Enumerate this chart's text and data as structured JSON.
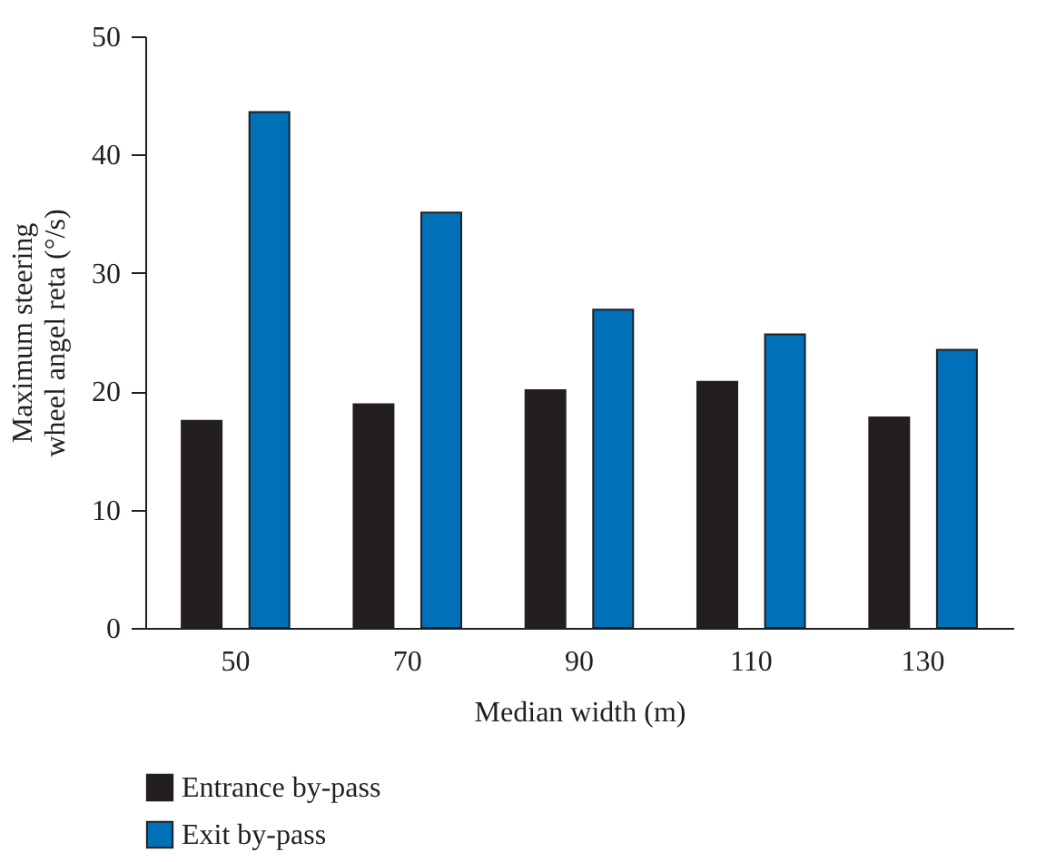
{
  "chart_data": {
    "type": "bar",
    "xlabel": "Median width (m)",
    "ylabel": "Maximum steering wheel angel reta (°/s)",
    "categories": [
      "50",
      "70",
      "90",
      "110",
      "130"
    ],
    "series": [
      {
        "name": "Entrance by-pass",
        "color": "#231f20",
        "values": [
          17.5,
          18.9,
          20.1,
          20.8,
          17.8
        ]
      },
      {
        "name": "Exit by-pass",
        "color": "#0070b8",
        "values": [
          43.6,
          35.1,
          26.9,
          24.8,
          23.5
        ]
      }
    ],
    "ylim": [
      0,
      50
    ],
    "yticks": [
      0,
      10,
      20,
      30,
      40,
      50
    ],
    "grid": false,
    "legend": "bottom"
  }
}
